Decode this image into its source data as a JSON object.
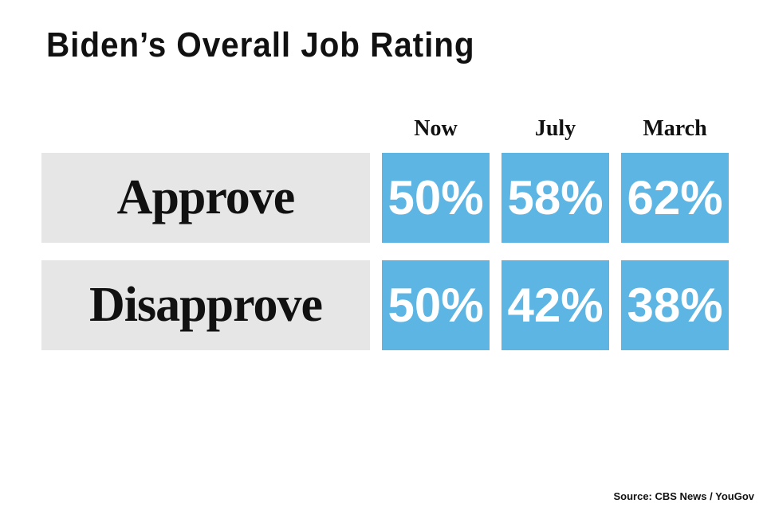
{
  "title": "Biden’s Overall Job Rating",
  "table": {
    "columns": [
      "Now",
      "July",
      "March"
    ],
    "rows": [
      {
        "label": "Approve",
        "values": [
          "50%",
          "58%",
          "62%"
        ]
      },
      {
        "label": "Disapprove",
        "values": [
          "50%",
          "42%",
          "38%"
        ]
      }
    ]
  },
  "source": "Source: CBS News / YouGov"
}
